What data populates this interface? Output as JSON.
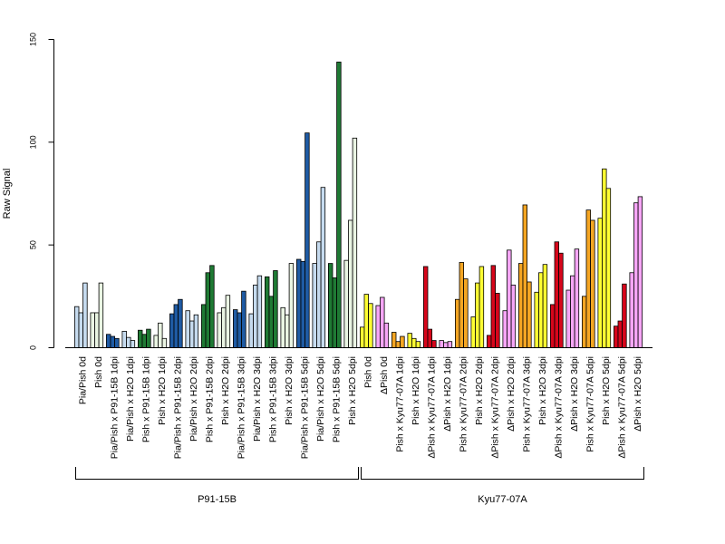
{
  "chart_data": {
    "type": "bar",
    "ylabel": "Raw Signal",
    "xlabel": "",
    "ylim": [
      0,
      150
    ],
    "yticks": [
      0,
      50,
      100,
      150
    ],
    "grid": false,
    "bars_per_category": 3,
    "groups": [
      {
        "label": "P91-15B",
        "first": 0,
        "last": 17
      },
      {
        "label": "Kyu77-07A",
        "first": 18,
        "last": 35
      }
    ],
    "categories": [
      "Pia/Pish 0d",
      "Pish 0d",
      "Pia/Pish x P91-15B 1dpi",
      "Pia/Pish x H2O 1dpi",
      "Pish x P91-15B 1dpi",
      "Pish x H2O 1dpi",
      "Pia/Pish x P91-15B 2dpi",
      "Pia/Pish x H2O 2dpi",
      "Pish x P91-15B 2dpi",
      "Pish x H2O 2dpi",
      "Pia/Pish x P91-15B 3dpi",
      "Pia/Pish x H2O 3dpi",
      "Pish x P91-15B 3dpi",
      "Pish x H2O 3dpi",
      "Pia/Pish x P91-15B 5dpi",
      "Pia/Pish x H2O 5dpi",
      "Pish x P91-15B 5dpi",
      "Pish x H2O 5dpi",
      "Pish 0d",
      "ΔPish 0d",
      "Pish x Kyu77-07A 1dpi",
      "Pish x H2O 1dpi",
      "ΔPish x Kyu77-07A 1dpi",
      "ΔPish x H2O 1dpi",
      "Pish x Kyu77-07A 2dpi",
      "Pish x H2O 2dpi",
      "ΔPish x Kyu77-07A 2dpi",
      "ΔPish x H2O 2dpi",
      "Pish x Kyu77-07A 3dpi",
      "Pish x H2O 3dpi",
      "ΔPish x Kyu77-07A 3dpi",
      "ΔPish x H2O 3dpi",
      "Pish x Kyu77-07A 5dpi",
      "Pish x H2O 5dpi",
      "ΔPish x Kyu77-07A 5dpi",
      "ΔPish x H2O 5dpi"
    ],
    "colors": [
      "#c6dbef",
      "#eaf5e3",
      "#1f5ba4",
      "#c6dbef",
      "#1f7a34",
      "#eaf5e3",
      "#1f5ba4",
      "#c6dbef",
      "#1f7a34",
      "#eaf5e3",
      "#1f5ba4",
      "#c6dbef",
      "#1f7a34",
      "#eaf5e3",
      "#1f5ba4",
      "#c6dbef",
      "#1f7a34",
      "#eaf5e3",
      "#ffff33",
      "#f7a6f7",
      "#f5a623",
      "#ffff33",
      "#d7061b",
      "#f7a6f7",
      "#f5a623",
      "#ffff33",
      "#d7061b",
      "#f7a6f7",
      "#f5a623",
      "#ffff33",
      "#d7061b",
      "#f7a6f7",
      "#f5a623",
      "#ffff33",
      "#d7061b",
      "#f7a6f7"
    ],
    "values": [
      [
        20,
        17,
        31.5
      ],
      [
        17,
        17,
        31.5
      ],
      [
        6.5,
        5.5,
        4.5
      ],
      [
        8,
        5,
        3.5
      ],
      [
        8.5,
        6.5,
        9
      ],
      [
        6,
        12,
        4.5
      ],
      [
        16.5,
        21,
        23.5
      ],
      [
        18,
        13,
        16
      ],
      [
        21,
        36.5,
        40
      ],
      [
        17,
        19.5,
        25.5
      ],
      [
        18.5,
        17,
        27.5
      ],
      [
        16.5,
        30.5,
        35
      ],
      [
        34.5,
        25,
        37.5
      ],
      [
        19.5,
        16,
        41
      ],
      [
        43,
        42,
        104.5
      ],
      [
        41,
        51.5,
        78
      ],
      [
        41,
        34,
        139
      ],
      [
        42.5,
        62,
        102
      ],
      [
        10,
        26,
        21.5
      ],
      [
        20.5,
        24.5,
        12
      ],
      [
        7.5,
        3,
        5.5
      ],
      [
        7,
        4.5,
        3
      ],
      [
        39.5,
        9,
        3.5
      ],
      [
        3.5,
        2.5,
        3
      ],
      [
        23.5,
        41.5,
        33.5
      ],
      [
        15,
        31.5,
        39.5
      ],
      [
        6,
        40,
        26.5
      ],
      [
        18,
        47.5,
        30.5
      ],
      [
        41,
        69.5,
        32
      ],
      [
        27,
        36.5,
        40.5
      ],
      [
        21,
        51.5,
        46
      ],
      [
        28,
        35,
        48
      ],
      [
        25,
        67,
        62
      ],
      [
        63,
        87,
        77.5
      ],
      [
        10.5,
        13,
        31
      ],
      [
        36.5,
        70.5,
        73.5
      ]
    ]
  }
}
